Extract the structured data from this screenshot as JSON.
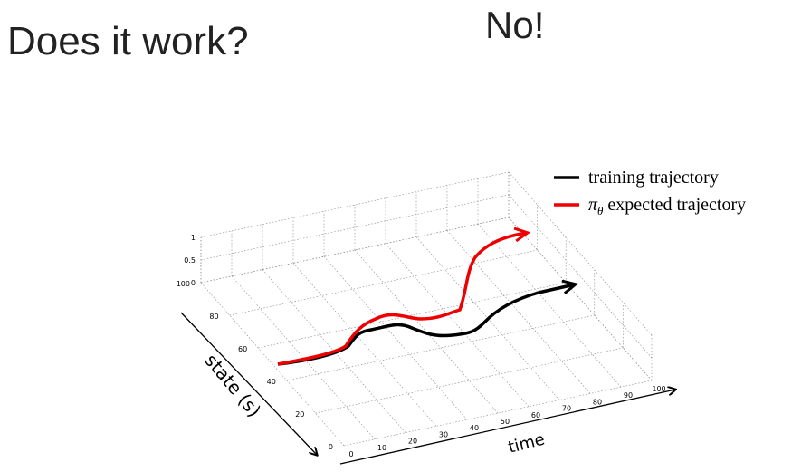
{
  "title": "Does it work?",
  "answer": "No!",
  "legend": {
    "training": "training trajectory",
    "policy_symbol": "π",
    "policy_subscript": "θ",
    "expected": "expected trajectory"
  },
  "axes": {
    "z_ticks": [
      "0",
      "0.5",
      "1"
    ],
    "state_ticks": [
      "0",
      "20",
      "40",
      "60",
      "80",
      "100"
    ],
    "time_ticks": [
      "0",
      "10",
      "20",
      "30",
      "40",
      "50",
      "60",
      "70",
      "80",
      "90",
      "100"
    ],
    "state_label": "state (s)",
    "time_label": "time"
  }
}
